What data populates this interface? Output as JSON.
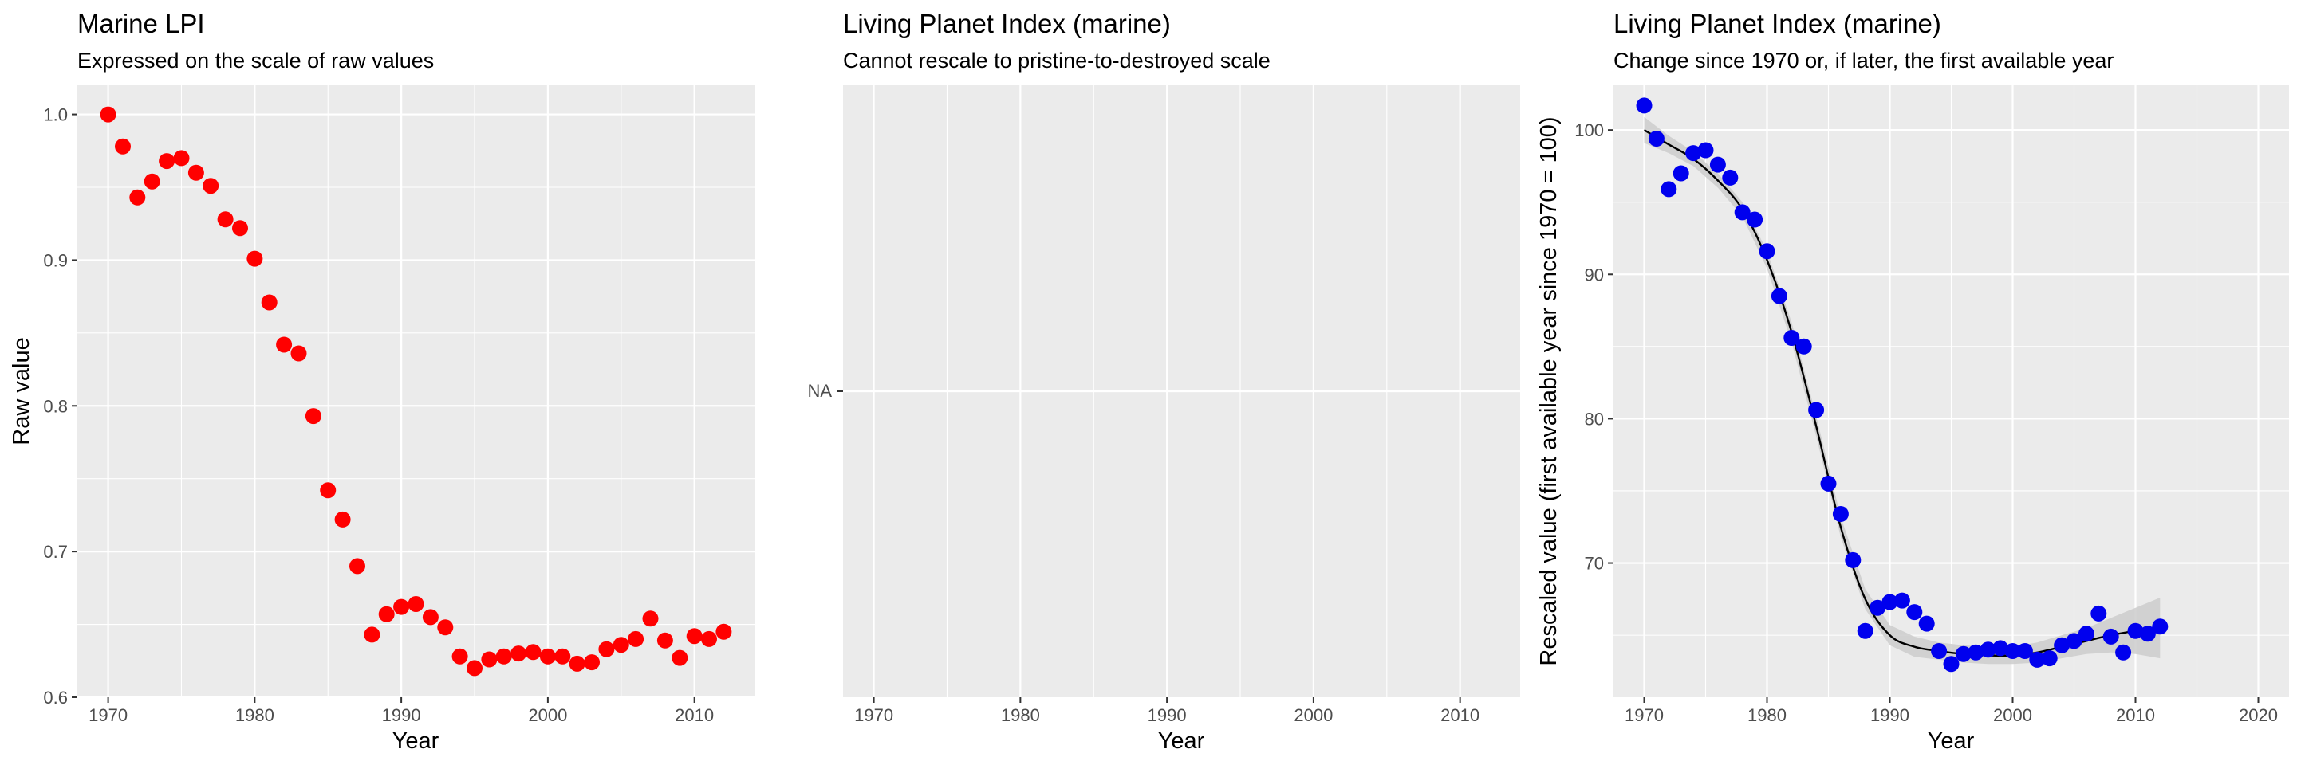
{
  "chart_data": [
    {
      "type": "scatter",
      "title": "Marine LPI",
      "subtitle": "Expressed on the scale of raw values",
      "xlabel": "Year",
      "ylabel": "Raw value",
      "xlim": [
        1967.9,
        2014.1
      ],
      "ylim": [
        0.6,
        1.02
      ],
      "xticks": [
        1970,
        1980,
        1990,
        2000,
        2010
      ],
      "xtick_labels": [
        "1970",
        "1980",
        "1990",
        "2000",
        "2010"
      ],
      "yticks": [
        0.6,
        0.7,
        0.8,
        0.9,
        1.0
      ],
      "ytick_labels": [
        "0.6",
        "0.7",
        "0.8",
        "0.9",
        "1.0"
      ],
      "grid": true,
      "point_color": "#ff0000",
      "series": [
        {
          "x": [
            1970,
            1971,
            1972,
            1973,
            1974,
            1975,
            1976,
            1977,
            1978,
            1979,
            1980,
            1981,
            1982,
            1983,
            1984,
            1985,
            1986,
            1987,
            1988,
            1989,
            1990,
            1991,
            1992,
            1993,
            1994,
            1995,
            1996,
            1997,
            1998,
            1999,
            2000,
            2001,
            2002,
            2003,
            2004,
            2005,
            2006,
            2007,
            2008,
            2009,
            2010,
            2011,
            2012
          ],
          "y": [
            1.0,
            0.978,
            0.943,
            0.954,
            0.968,
            0.97,
            0.96,
            0.951,
            0.928,
            0.922,
            0.901,
            0.871,
            0.842,
            0.836,
            0.793,
            0.742,
            0.722,
            0.69,
            0.643,
            0.657,
            0.662,
            0.664,
            0.655,
            0.648,
            0.628,
            0.62,
            0.626,
            0.628,
            0.63,
            0.631,
            0.628,
            0.628,
            0.623,
            0.624,
            0.633,
            0.636,
            0.64,
            0.654,
            0.639,
            0.627,
            0.642,
            0.64,
            0.645
          ]
        }
      ]
    },
    {
      "type": "scatter",
      "title": "Living Planet Index (marine)",
      "subtitle": "Cannot rescale to pristine-to-destroyed scale",
      "xlabel": "Year",
      "ylabel": "",
      "xlim": [
        1967.9,
        2014.1
      ],
      "xticks": [
        1970,
        1980,
        1990,
        2000,
        2010
      ],
      "xtick_labels": [
        "1970",
        "1980",
        "1990",
        "2000",
        "2010"
      ],
      "yticks": [
        "NA"
      ],
      "ytick_labels": [
        "NA"
      ],
      "grid": true,
      "series": []
    },
    {
      "type": "scatter",
      "title": "Living Planet Index (marine)",
      "subtitle": "Change since 1970 or, if later, the first available year",
      "xlabel": "Year",
      "ylabel": "Rescaled value (first available year since 1970 = 100)",
      "xlim": [
        1967.5,
        2022.5
      ],
      "ylim": [
        60.7,
        103.1
      ],
      "xticks": [
        1970,
        1980,
        1990,
        2000,
        2010,
        2020
      ],
      "xtick_labels": [
        "1970",
        "1980",
        "1990",
        "2000",
        "2010",
        "2020"
      ],
      "yticks": [
        70,
        80,
        90,
        100
      ],
      "ytick_labels": [
        "70",
        "80",
        "90",
        "100"
      ],
      "grid": true,
      "point_color": "#0000ee",
      "smooth_line_color": "#000000",
      "ribbon_color": "#cccccc",
      "series": [
        {
          "x": [
            1970,
            1971,
            1972,
            1973,
            1974,
            1975,
            1976,
            1977,
            1978,
            1979,
            1980,
            1981,
            1982,
            1983,
            1984,
            1985,
            1986,
            1987,
            1988,
            1989,
            1990,
            1991,
            1992,
            1993,
            1994,
            1995,
            1996,
            1997,
            1998,
            1999,
            2000,
            2001,
            2002,
            2003,
            2004,
            2005,
            2006,
            2007,
            2008,
            2009,
            2010,
            2011,
            2012
          ],
          "y": [
            101.7,
            99.4,
            95.9,
            97.0,
            98.4,
            98.6,
            97.6,
            96.7,
            94.3,
            93.8,
            91.6,
            88.5,
            85.6,
            85.0,
            80.6,
            75.5,
            73.4,
            70.2,
            65.3,
            66.9,
            67.3,
            67.4,
            66.6,
            65.8,
            63.9,
            63.0,
            63.7,
            63.8,
            64.0,
            64.1,
            63.9,
            63.9,
            63.3,
            63.4,
            64.3,
            64.6,
            65.1,
            66.5,
            64.9,
            63.8,
            65.3,
            65.1,
            65.6
          ]
        }
      ],
      "smooth": {
        "x": [
          1970,
          1972,
          1974,
          1976,
          1978,
          1980,
          1982,
          1984,
          1986,
          1988,
          1990,
          1992,
          1994,
          1996,
          1998,
          2000,
          2002,
          2004,
          2006,
          2008,
          2010,
          2012
        ],
        "y": [
          100.0,
          99.0,
          98.0,
          96.5,
          94.5,
          91.0,
          86.0,
          79.5,
          72.5,
          67.5,
          65.0,
          64.2,
          63.9,
          63.7,
          63.6,
          63.6,
          63.8,
          64.2,
          64.6,
          65.0,
          65.3,
          65.5
        ],
        "lower": [
          99.1,
          98.4,
          97.5,
          96.0,
          94.0,
          90.4,
          85.3,
          78.8,
          71.8,
          66.8,
          64.3,
          63.5,
          63.3,
          63.1,
          63.0,
          63.0,
          63.1,
          63.4,
          63.7,
          63.8,
          63.7,
          63.4
        ],
        "upper": [
          100.9,
          99.6,
          98.5,
          97.0,
          95.0,
          91.6,
          86.7,
          80.2,
          73.2,
          68.2,
          65.7,
          64.9,
          64.5,
          64.3,
          64.2,
          64.2,
          64.5,
          65.0,
          65.5,
          66.2,
          66.9,
          67.6
        ]
      }
    }
  ]
}
